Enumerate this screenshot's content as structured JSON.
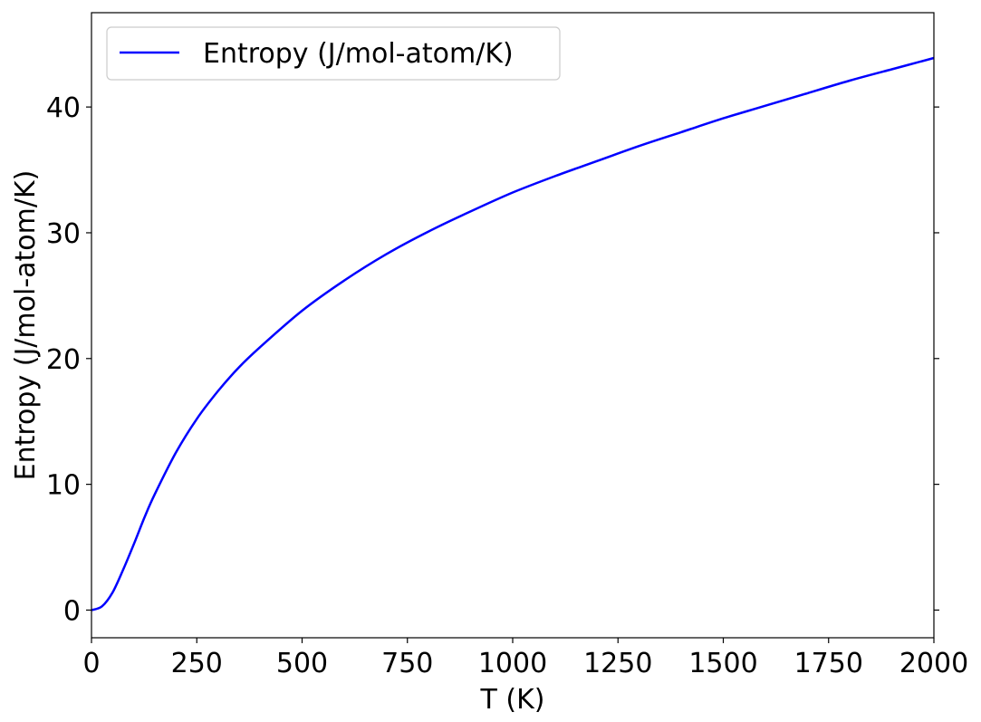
{
  "chart_data": {
    "type": "line",
    "xlabel": "T (K)",
    "ylabel": "Entropy (J/mol-atom/K)",
    "xlim": [
      0,
      2000
    ],
    "ylim": [
      -2.2,
      47.5
    ],
    "xticks": [
      0,
      250,
      500,
      750,
      1000,
      1250,
      1500,
      1750,
      2000
    ],
    "yticks": [
      0,
      10,
      20,
      30,
      40
    ],
    "grid": false,
    "legend_position": "top-left",
    "series": [
      {
        "name": "Entropy (J/mol-atom/K)",
        "color": "#0000ff",
        "x": [
          0,
          25,
          50,
          75,
          100,
          125,
          150,
          200,
          250,
          300,
          350,
          400,
          500,
          600,
          700,
          800,
          900,
          1000,
          1100,
          1200,
          1300,
          1400,
          1500,
          1600,
          1700,
          1800,
          1900,
          2000
        ],
        "y": [
          0,
          0.3,
          1.4,
          3.2,
          5.2,
          7.3,
          9.2,
          12.5,
          15.2,
          17.4,
          19.3,
          20.9,
          23.8,
          26.2,
          28.3,
          30.1,
          31.7,
          33.2,
          34.5,
          35.7,
          36.9,
          38.0,
          39.1,
          40.1,
          41.1,
          42.1,
          43.0,
          43.9
        ]
      }
    ]
  }
}
